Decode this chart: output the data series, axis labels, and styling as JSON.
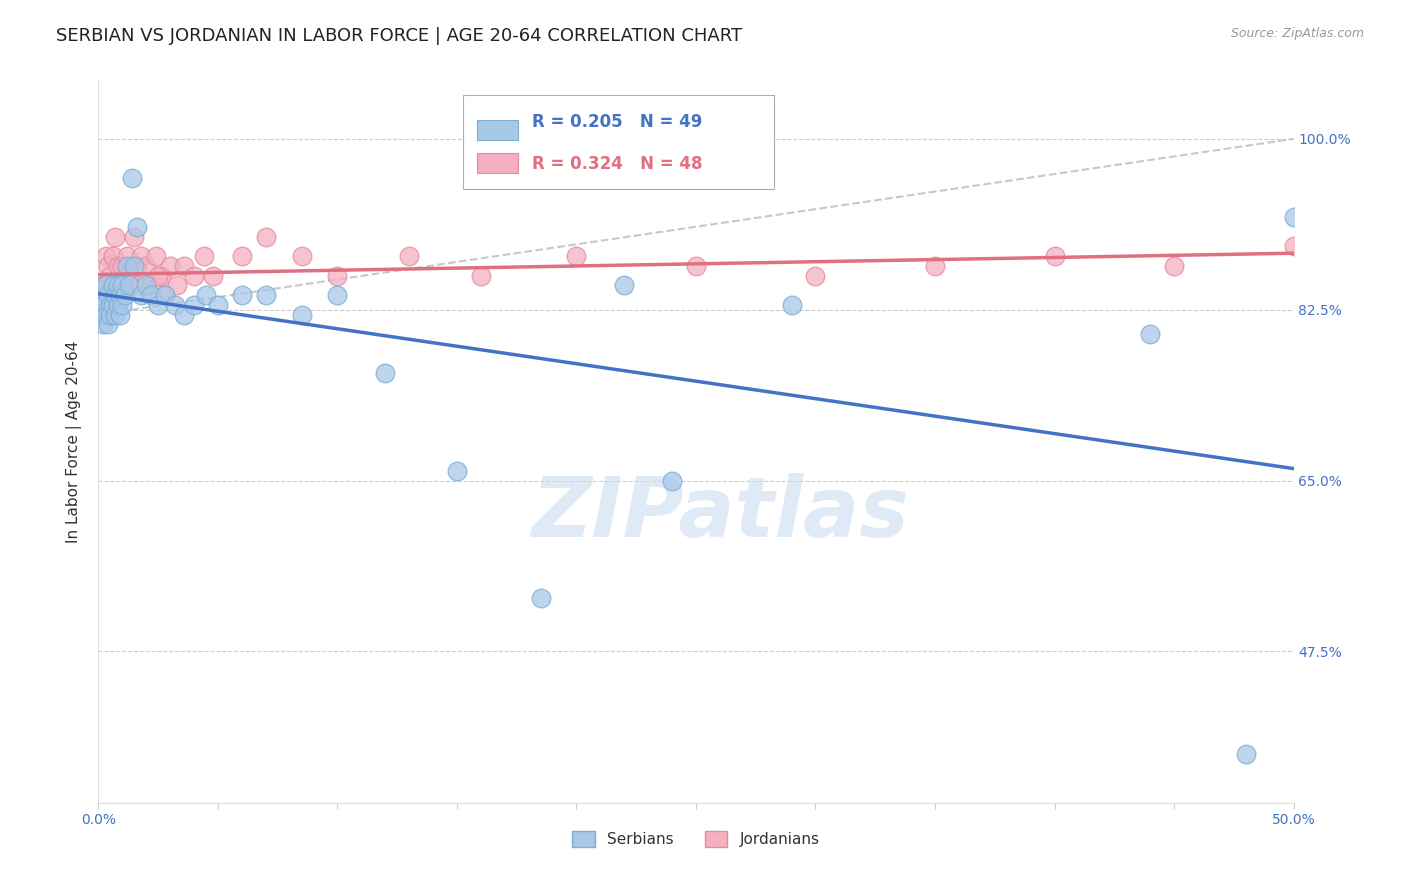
{
  "title": "SERBIAN VS JORDANIAN IN LABOR FORCE | AGE 20-64 CORRELATION CHART",
  "source_text": "Source: ZipAtlas.com",
  "ylabel": "In Labor Force | Age 20-64",
  "xlim": [
    0.0,
    0.5
  ],
  "ylim": [
    0.32,
    1.06
  ],
  "ytick_positions": [
    0.475,
    0.65,
    0.825,
    1.0
  ],
  "ytick_labels": [
    "47.5%",
    "65.0%",
    "82.5%",
    "100.0%"
  ],
  "watermark": "ZIPatlas",
  "serbian_color": "#a8c8e8",
  "jordanian_color": "#f4b0c0",
  "serbian_edge": "#7aaed6",
  "jordanian_edge": "#e888a0",
  "trend_serbian_color": "#4472c4",
  "trend_jordanian_color": "#e07080",
  "R_serbian": 0.205,
  "N_serbian": 49,
  "R_jordanian": 0.324,
  "N_jordanian": 48,
  "serbian_x": [
    0.001,
    0.001,
    0.002,
    0.002,
    0.003,
    0.003,
    0.004,
    0.004,
    0.005,
    0.005,
    0.006,
    0.006,
    0.007,
    0.007,
    0.008,
    0.008,
    0.009,
    0.009,
    0.01,
    0.01,
    0.011,
    0.012,
    0.013,
    0.014,
    0.015,
    0.016,
    0.018,
    0.02,
    0.022,
    0.025,
    0.028,
    0.032,
    0.036,
    0.04,
    0.045,
    0.05,
    0.06,
    0.07,
    0.085,
    0.1,
    0.12,
    0.15,
    0.185,
    0.24,
    0.29,
    0.44,
    0.48,
    0.5,
    0.22
  ],
  "serbian_y": [
    0.84,
    0.82,
    0.83,
    0.81,
    0.85,
    0.82,
    0.84,
    0.81,
    0.83,
    0.82,
    0.85,
    0.83,
    0.84,
    0.82,
    0.83,
    0.85,
    0.82,
    0.84,
    0.83,
    0.85,
    0.84,
    0.87,
    0.85,
    0.96,
    0.87,
    0.91,
    0.84,
    0.85,
    0.84,
    0.83,
    0.84,
    0.83,
    0.82,
    0.83,
    0.84,
    0.83,
    0.84,
    0.84,
    0.82,
    0.84,
    0.76,
    0.66,
    0.53,
    0.65,
    0.83,
    0.8,
    0.37,
    0.92,
    0.85
  ],
  "jordanian_x": [
    0.001,
    0.001,
    0.002,
    0.002,
    0.003,
    0.003,
    0.004,
    0.004,
    0.005,
    0.005,
    0.006,
    0.007,
    0.007,
    0.008,
    0.009,
    0.01,
    0.011,
    0.012,
    0.013,
    0.015,
    0.016,
    0.017,
    0.018,
    0.02,
    0.022,
    0.024,
    0.026,
    0.028,
    0.03,
    0.033,
    0.036,
    0.04,
    0.044,
    0.048,
    0.06,
    0.07,
    0.085,
    0.1,
    0.13,
    0.16,
    0.2,
    0.25,
    0.3,
    0.35,
    0.4,
    0.45,
    0.5,
    0.025
  ],
  "jordanian_y": [
    0.83,
    0.82,
    0.85,
    0.83,
    0.88,
    0.85,
    0.87,
    0.84,
    0.86,
    0.83,
    0.88,
    0.85,
    0.9,
    0.87,
    0.84,
    0.87,
    0.85,
    0.88,
    0.86,
    0.9,
    0.87,
    0.85,
    0.88,
    0.87,
    0.85,
    0.88,
    0.86,
    0.84,
    0.87,
    0.85,
    0.87,
    0.86,
    0.88,
    0.86,
    0.88,
    0.9,
    0.88,
    0.86,
    0.88,
    0.86,
    0.88,
    0.87,
    0.86,
    0.87,
    0.88,
    0.87,
    0.89,
    0.86
  ],
  "title_fontsize": 13,
  "axis_label_fontsize": 11,
  "tick_fontsize": 10
}
